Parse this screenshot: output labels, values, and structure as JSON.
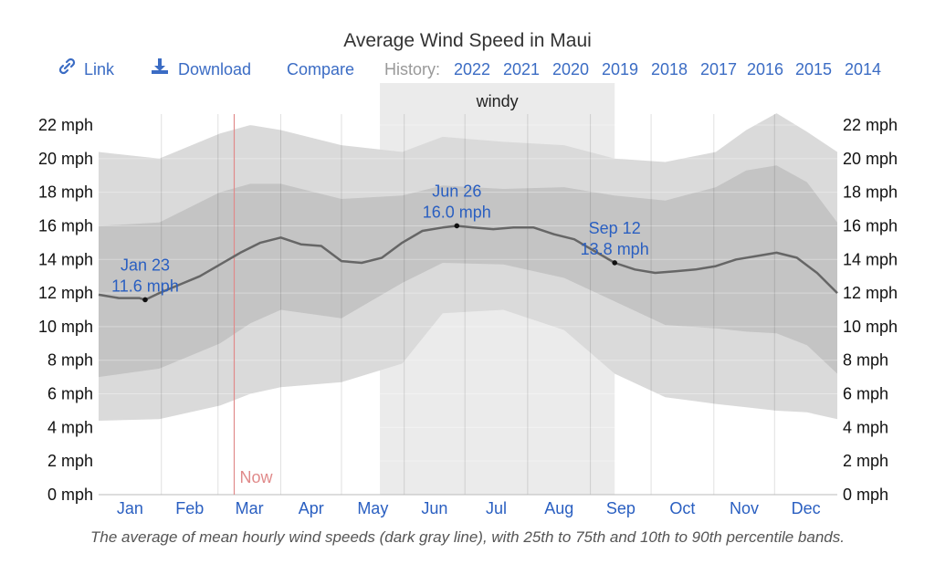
{
  "toolbar": {
    "link_label": "Link",
    "download_label": "Download",
    "compare_label": "Compare",
    "history_label": "History:",
    "history_years": [
      "2022",
      "2021",
      "2020",
      "2019",
      "2018",
      "2017",
      "2016",
      "2015",
      "2014"
    ],
    "link_color": "#3b6cc4"
  },
  "caption": "The average of mean hourly wind speeds (dark gray line), with 25th to 75th and 10th to 90th percentile bands.",
  "chart_data": {
    "type": "area",
    "title": "Average Wind Speed in Maui",
    "xlabel": "",
    "ylabel": "",
    "x_unit": "day of year",
    "categories": [
      "Jan",
      "Feb",
      "Mar",
      "Apr",
      "May",
      "Jun",
      "Jul",
      "Aug",
      "Sep",
      "Oct",
      "Nov",
      "Dec"
    ],
    "y_ticks": [
      "0 mph",
      "2 mph",
      "4 mph",
      "6 mph",
      "8 mph",
      "10 mph",
      "12 mph",
      "14 mph",
      "16 mph",
      "18 mph",
      "20 mph",
      "22 mph"
    ],
    "ylim": [
      0,
      22
    ],
    "xlim": [
      0,
      365
    ],
    "grid": true,
    "highlight_band": {
      "label": "windy",
      "start": 139,
      "end": 255,
      "color": "#ebebeb"
    },
    "now_marker": {
      "label": "Now",
      "x": 67,
      "color": "#e08a8a"
    },
    "series": [
      {
        "role": "p10_p90",
        "color": "#dadada",
        "x": [
          0,
          30,
          60,
          75,
          90,
          120,
          150,
          170,
          200,
          230,
          255,
          280,
          305,
          320,
          335,
          350,
          365
        ],
        "low": [
          4.4,
          4.5,
          5.3,
          6.0,
          6.4,
          6.7,
          7.8,
          10.8,
          11.0,
          9.8,
          7.2,
          5.8,
          5.4,
          5.2,
          5.0,
          4.9,
          4.5
        ],
        "high": [
          20.4,
          20.0,
          21.5,
          22.0,
          21.7,
          20.8,
          20.4,
          21.3,
          21.0,
          20.8,
          20.0,
          19.8,
          20.4,
          21.7,
          22.7,
          21.6,
          20.4
        ]
      },
      {
        "role": "p25_p75",
        "color": "#c4c4c4",
        "x": [
          0,
          30,
          60,
          75,
          90,
          120,
          150,
          170,
          200,
          230,
          255,
          280,
          305,
          320,
          335,
          350,
          365
        ],
        "low": [
          7.0,
          7.5,
          9.0,
          10.2,
          11.0,
          10.5,
          12.6,
          13.8,
          13.7,
          12.9,
          11.5,
          10.1,
          9.9,
          9.7,
          9.6,
          8.9,
          7.2
        ],
        "high": [
          16.0,
          16.2,
          18.0,
          18.5,
          18.5,
          17.6,
          17.8,
          18.4,
          18.2,
          18.3,
          17.8,
          17.5,
          18.3,
          19.3,
          19.6,
          18.6,
          16.2
        ]
      },
      {
        "role": "mean",
        "color": "#666666",
        "x": [
          0,
          10,
          20,
          23,
          30,
          40,
          50,
          60,
          70,
          80,
          90,
          100,
          110,
          120,
          130,
          140,
          150,
          160,
          170,
          177,
          185,
          195,
          205,
          215,
          225,
          235,
          245,
          255,
          265,
          275,
          285,
          295,
          305,
          315,
          325,
          335,
          345,
          355,
          365
        ],
        "y": [
          11.9,
          11.7,
          11.7,
          11.6,
          12.0,
          12.5,
          13.0,
          13.7,
          14.4,
          15.0,
          15.3,
          14.9,
          14.8,
          13.9,
          13.8,
          14.1,
          15.0,
          15.7,
          15.9,
          16.0,
          15.9,
          15.8,
          15.9,
          15.9,
          15.5,
          15.2,
          14.5,
          13.8,
          13.4,
          13.2,
          13.3,
          13.4,
          13.6,
          14.0,
          14.2,
          14.4,
          14.1,
          13.2,
          12.0
        ]
      }
    ],
    "annotations": [
      {
        "x": 23,
        "y": 11.6,
        "date": "Jan 23",
        "value": "11.6 mph"
      },
      {
        "x": 177,
        "y": 16.0,
        "date": "Jun 26",
        "value": "16.0 mph"
      },
      {
        "x": 255,
        "y": 13.8,
        "date": "Sep 12",
        "value": "13.8 mph"
      }
    ]
  }
}
